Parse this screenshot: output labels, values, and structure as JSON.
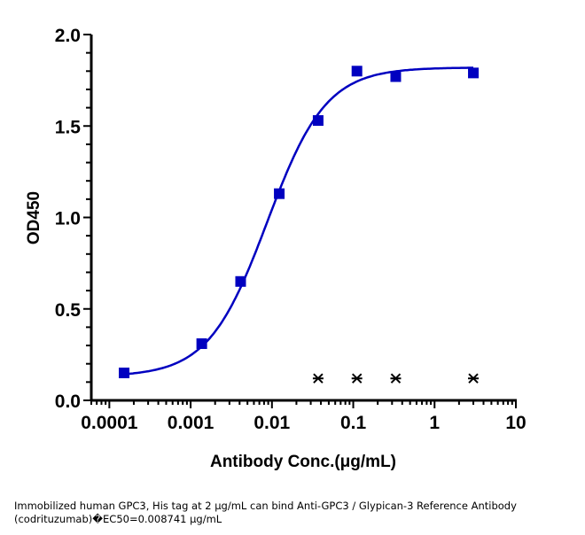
{
  "chart_data": {
    "type": "scatter",
    "xlabel": "Antibody Conc.(μg/mL)",
    "ylabel": "OD450",
    "x_scale": "log",
    "xlim": [
      6e-05,
      10
    ],
    "ylim": [
      0,
      2.0
    ],
    "x_ticks": [
      "0.0001",
      "0.001",
      "0.01",
      "0.1",
      "1",
      "10"
    ],
    "y_ticks": [
      "0.0",
      "0.5",
      "1.0",
      "1.5",
      "2.0"
    ],
    "grid": false,
    "color": "#0000c0",
    "series": [
      {
        "marker": "square",
        "x": [
          0.000152,
          0.00137,
          0.00412,
          0.0123,
          0.037,
          0.111,
          0.333,
          3
        ],
        "y": [
          0.15,
          0.31,
          0.65,
          1.13,
          1.53,
          1.8,
          1.77,
          1.79
        ],
        "fit": {
          "model": "4PL",
          "bottom": 0.13,
          "top": 1.82,
          "ec50": 0.008741,
          "hill": 1.2
        }
      },
      {
        "marker": "star",
        "color": "#000000",
        "x": [
          0.037,
          0.111,
          0.333,
          3
        ],
        "y": [
          0.12,
          0.12,
          0.12,
          0.12
        ]
      }
    ]
  },
  "caption": "Immobilized human GPC3, His tag at 2  μg/mL can bind  Anti-GPC3 / Glypican-3 Reference Antibody (codrituzumab)�EC50=0.008741 μg/mL"
}
